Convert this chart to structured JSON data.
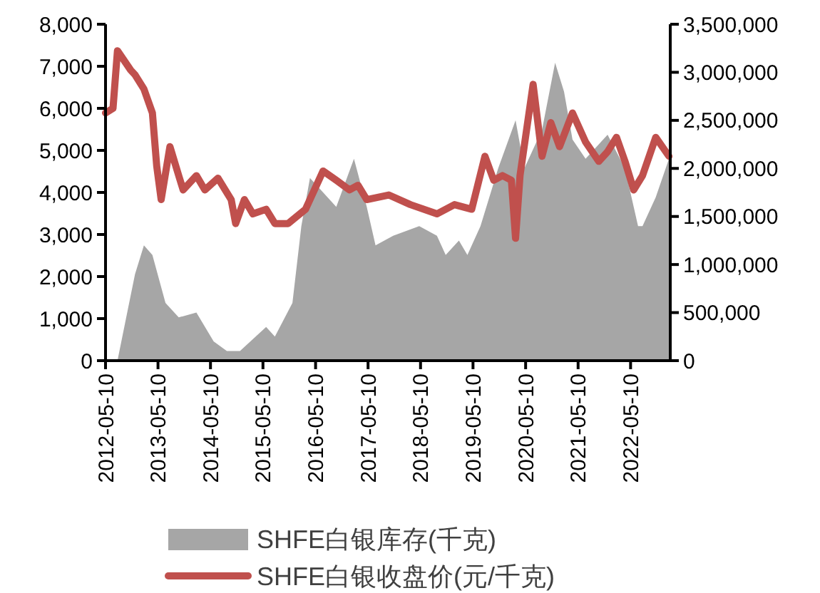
{
  "chart_data": {
    "type": "area",
    "xlim": [
      "2012-05-10",
      "2023-02-10"
    ],
    "xticks": [
      "2012-05-10",
      "2013-05-10",
      "2014-05-10",
      "2015-05-10",
      "2016-05-10",
      "2017-05-10",
      "2018-05-10",
      "2019-05-10",
      "2020-05-10",
      "2021-05-10",
      "2022-05-10"
    ],
    "ylim": [
      0,
      8000
    ],
    "yticks": [
      {
        "value": 0,
        "label": "0"
      },
      {
        "value": 1000,
        "label": "1,000"
      },
      {
        "value": 2000,
        "label": "2,000"
      },
      {
        "value": 3000,
        "label": "3,000"
      },
      {
        "value": 4000,
        "label": "4,000"
      },
      {
        "value": 5000,
        "label": "5,000"
      },
      {
        "value": 6000,
        "label": "6,000"
      },
      {
        "value": 7000,
        "label": "7,000"
      },
      {
        "value": 8000,
        "label": "8,000"
      }
    ],
    "y2lim": [
      0,
      3500000
    ],
    "y2ticks": [
      {
        "value": 0,
        "label": "0"
      },
      {
        "value": 500000,
        "label": "500,000"
      },
      {
        "value": 1000000,
        "label": "1,000,000"
      },
      {
        "value": 1500000,
        "label": "1,500,000"
      },
      {
        "value": 2000000,
        "label": "2,000,000"
      },
      {
        "value": 2500000,
        "label": "2,500,000"
      },
      {
        "value": 3000000,
        "label": "3,000,000"
      },
      {
        "value": 3500000,
        "label": "3,500,000"
      }
    ],
    "legend": "bottom",
    "grid": false,
    "series": [
      {
        "name": "SHFE白银库存(千克)",
        "axis": "y2",
        "color": "#a6a6a6",
        "x": [
          "2012-05-10",
          "2012-08",
          "2012-10",
          "2012-12",
          "2013-02",
          "2013-04",
          "2013-07",
          "2013-10",
          "2014-02",
          "2014-06",
          "2014-09",
          "2014-12",
          "2015-06",
          "2015-08",
          "2015-12",
          "2016-02",
          "2016-04",
          "2016-08",
          "2016-10",
          "2017-02",
          "2017-05",
          "2017-07",
          "2017-11",
          "2018-05",
          "2018-09",
          "2018-11",
          "2019-02",
          "2019-04",
          "2019-07",
          "2019-11",
          "2020-03",
          "2020-05",
          "2020-09",
          "2020-12",
          "2021-02",
          "2021-04",
          "2021-07",
          "2021-12",
          "2022-04",
          "2022-07",
          "2022-08",
          "2022-11",
          "2023-02"
        ],
        "values": [
          0,
          0,
          450000,
          900000,
          1200000,
          1100000,
          600000,
          450000,
          500000,
          200000,
          100000,
          100000,
          350000,
          250000,
          600000,
          1400000,
          1900000,
          1700000,
          1600000,
          2100000,
          1600000,
          1200000,
          1300000,
          1400000,
          1300000,
          1100000,
          1250000,
          1100000,
          1400000,
          2000000,
          2500000,
          2000000,
          2400000,
          3100000,
          2800000,
          2300000,
          2100000,
          2350000,
          2000000,
          1400000,
          1400000,
          1700000,
          2100000
        ]
      },
      {
        "name": "SHFE白银收盘价(元/千克)",
        "type": "line",
        "axis": "y",
        "color": "#c0504d",
        "x": [
          "2012-05-10",
          "2012-07",
          "2012-08",
          "2012-11",
          "2012-12",
          "2013-02",
          "2013-04",
          "2013-05",
          "2013-06",
          "2013-08",
          "2013-10",
          "2013-11",
          "2014-02",
          "2014-04",
          "2014-07",
          "2014-10",
          "2014-11",
          "2015-01",
          "2015-03",
          "2015-06",
          "2015-08",
          "2015-11",
          "2016-03",
          "2016-07",
          "2016-10",
          "2017-01",
          "2017-03",
          "2017-05",
          "2017-10",
          "2018-03",
          "2018-09",
          "2019-01",
          "2019-05",
          "2019-08",
          "2019-10",
          "2019-12",
          "2020-02",
          "2020-03",
          "2020-04",
          "2020-07",
          "2020-09",
          "2020-11",
          "2021-01",
          "2021-04",
          "2021-07",
          "2021-10",
          "2021-12",
          "2022-02",
          "2022-04",
          "2022-06",
          "2022-08",
          "2022-11",
          "2023-02"
        ],
        "values": [
          5890,
          6000,
          7370,
          6910,
          6800,
          6460,
          5890,
          4630,
          3830,
          5090,
          4400,
          4060,
          4400,
          4060,
          4340,
          3830,
          3260,
          3830,
          3490,
          3600,
          3260,
          3260,
          3600,
          4510,
          4290,
          4060,
          4170,
          3830,
          3940,
          3710,
          3490,
          3710,
          3600,
          4860,
          4290,
          4400,
          4290,
          2910,
          4400,
          6570,
          4860,
          5660,
          5090,
          5890,
          5200,
          4740,
          4970,
          5310,
          4740,
          4060,
          4400,
          5310,
          4860
        ]
      }
    ]
  }
}
